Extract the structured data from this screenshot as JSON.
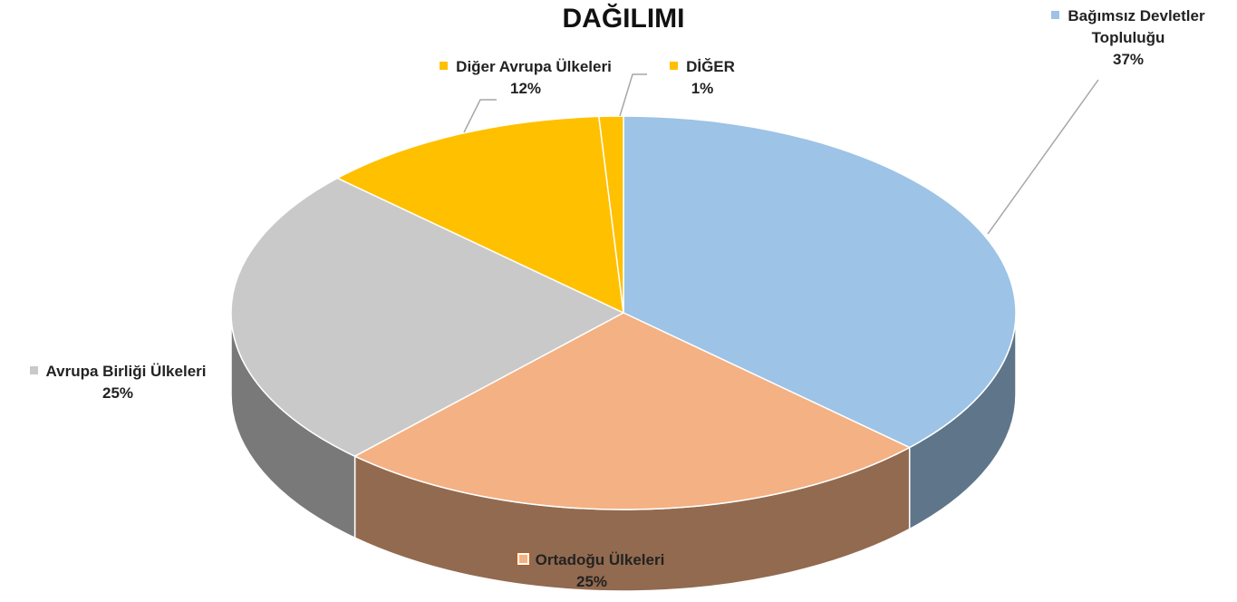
{
  "chart_data": {
    "type": "pie",
    "title": "DAĞILIMI",
    "categories": [
      "Bağımsız Devletler Topluluğu",
      "Ortadoğu Ülkeleri",
      "Avrupa Birliği Ülkeleri",
      "Diğer Avrupa Ülkeleri",
      "DİĞER"
    ],
    "values": [
      37,
      25,
      25,
      12,
      1
    ],
    "value_labels": [
      "37%",
      "25%",
      "25%",
      "12%",
      "1%"
    ],
    "colors": [
      "#9dc3e6",
      "#f4b183",
      "#c9c9c9",
      "#ffc000",
      "#ffc000"
    ]
  }
}
